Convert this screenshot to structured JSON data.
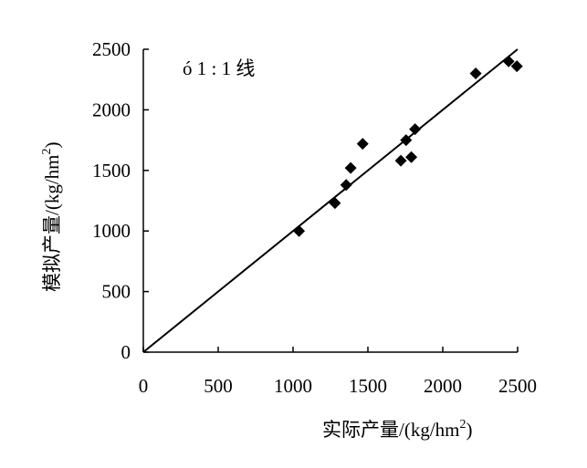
{
  "chart_data": {
    "type": "scatter",
    "title": "",
    "xlabel": "实际产量/(kg/hm",
    "xlabel_sup": "2",
    "xlabel_tail": ")",
    "ylabel": "模拟产量/(kg/hm",
    "ylabel_sup": "2",
    "ylabel_tail": ")",
    "xlim": [
      0,
      2500
    ],
    "ylim": [
      0,
      2500
    ],
    "xticks": [
      "0",
      "500",
      "1000",
      "1500",
      "2000",
      "2500"
    ],
    "yticks": [
      "0",
      "500",
      "1000",
      "1500",
      "2000",
      "2500"
    ],
    "grid": false,
    "annotation": "ó 1 : 1 线",
    "reference_line": {
      "type": "1:1",
      "from": [
        0,
        0
      ],
      "to": [
        2500,
        2500
      ]
    },
    "marker": "diamond",
    "marker_color": "#000000",
    "points": [
      {
        "x": 1040,
        "y": 1000
      },
      {
        "x": 1280,
        "y": 1230
      },
      {
        "x": 1355,
        "y": 1380
      },
      {
        "x": 1385,
        "y": 1520
      },
      {
        "x": 1465,
        "y": 1720
      },
      {
        "x": 1720,
        "y": 1580
      },
      {
        "x": 1755,
        "y": 1750
      },
      {
        "x": 1790,
        "y": 1610
      },
      {
        "x": 1815,
        "y": 1840
      },
      {
        "x": 2220,
        "y": 2300
      },
      {
        "x": 2440,
        "y": 2400
      },
      {
        "x": 2495,
        "y": 2360
      }
    ]
  }
}
